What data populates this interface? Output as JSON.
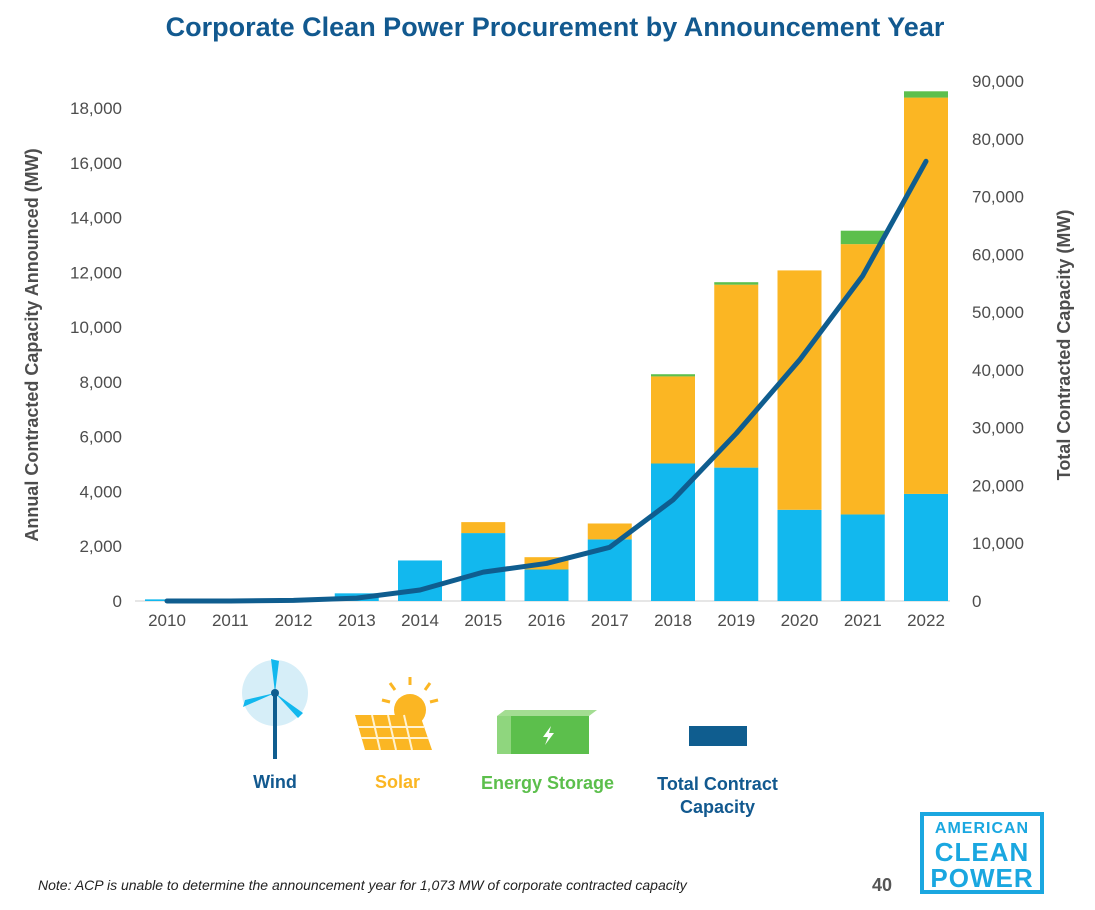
{
  "colors": {
    "wind": "#12b8ee",
    "solar": "#fbb623",
    "storage": "#5cbf4c",
    "total": "#0f5d8f",
    "title": "#12598f"
  },
  "chart_data": {
    "type": "bar",
    "title": "Corporate Clean Power Procurement by Announcement Year",
    "categories": [
      "2010",
      "2011",
      "2012",
      "2013",
      "2014",
      "2015",
      "2016",
      "2017",
      "2018",
      "2019",
      "2020",
      "2021",
      "2022"
    ],
    "series": [
      {
        "name": "Wind",
        "type": "bar",
        "axis": "left",
        "color": "#12b8ee",
        "values": [
          60,
          0,
          50,
          280,
          1480,
          2480,
          1150,
          2250,
          5020,
          4870,
          3330,
          3160,
          3910
        ]
      },
      {
        "name": "Solar",
        "type": "bar",
        "axis": "left",
        "color": "#fbb623",
        "values": [
          0,
          0,
          0,
          0,
          0,
          400,
          450,
          580,
          3180,
          6680,
          8740,
          9870,
          14470
        ]
      },
      {
        "name": "Energy Storage",
        "type": "bar",
        "axis": "left",
        "color": "#5cbf4c",
        "values": [
          0,
          0,
          0,
          0,
          0,
          0,
          0,
          0,
          80,
          90,
          0,
          490,
          230
        ]
      },
      {
        "name": "Total Contract Capacity",
        "type": "line",
        "axis": "right",
        "color": "#0f5d8f",
        "values": [
          0,
          0,
          100,
          500,
          1900,
          5000,
          6500,
          9300,
          17500,
          29000,
          41700,
          56300,
          76100
        ]
      }
    ],
    "ylabel": "Annual Contracted Capacity Announced (MW)",
    "y2label": "Total Contracted Capacity (MW)",
    "ylim": [
      0,
      19000
    ],
    "y2lim": [
      0,
      90000
    ],
    "yticks": [
      "0",
      "2,000",
      "4,000",
      "6,000",
      "8,000",
      "10,000",
      "12,000",
      "14,000",
      "16,000",
      "18,000"
    ],
    "y2ticks": [
      "0",
      "10,000",
      "20,000",
      "30,000",
      "40,000",
      "50,000",
      "60,000",
      "70,000",
      "80,000",
      "90,000"
    ],
    "grid": false,
    "legend_position": "bottom"
  },
  "legend": {
    "wind": "Wind",
    "solar": "Solar",
    "storage": "Energy Storage",
    "total_line1": "Total Contract",
    "total_line2": "Capacity"
  },
  "footer": {
    "note": "Note: ACP is unable to determine the announcement year for 1,073 MW of corporate contracted capacity",
    "page_number": "40",
    "logo_line1": "AMERICAN",
    "logo_line2": "CLEAN",
    "logo_line3": "POWER"
  }
}
